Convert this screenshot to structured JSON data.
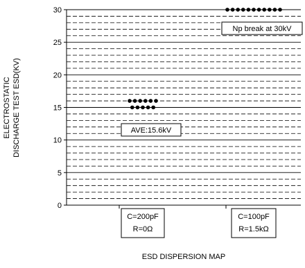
{
  "chart_data": {
    "type": "scatter",
    "title": "",
    "xlabel": "ESD DISPERSION MAP",
    "ylabel_lines": [
      "ELECTROSTATIC",
      "DISCHARGE TEST ESD(KV)"
    ],
    "ylim": [
      0,
      30
    ],
    "y_ticks": [
      0,
      5,
      10,
      15,
      20,
      25,
      30
    ],
    "grid": "solid lines at major ticks, dashed lines at 1 kV intervals",
    "categories": [
      {
        "lines": [
          "C=200pF",
          "R=0Ω"
        ]
      },
      {
        "lines": [
          "C=100pF",
          "R=1.5kΩ"
        ]
      }
    ],
    "series": [
      {
        "category_index": 0,
        "y": [
          16,
          16,
          16,
          16,
          16,
          16,
          15,
          15,
          15,
          15,
          15
        ]
      },
      {
        "category_index": 1,
        "y": [
          30,
          30,
          30,
          30,
          30,
          30,
          30,
          30,
          30,
          30,
          30
        ]
      }
    ],
    "annotations": [
      {
        "text": "AVE:15.6kV",
        "category_index": 0
      },
      {
        "text": "Np break at 30kV",
        "category_index": 1
      }
    ]
  }
}
